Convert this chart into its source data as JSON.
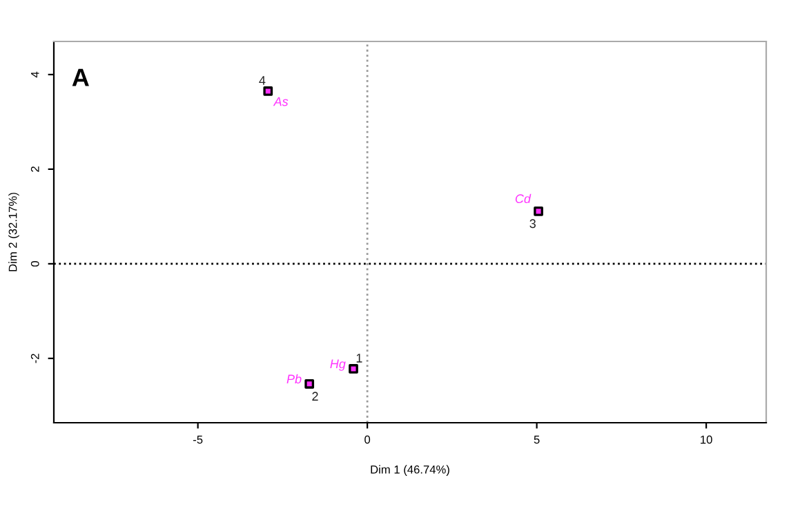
{
  "chart_data": {
    "type": "scatter",
    "xlabel": "Dim 1 (46.74%)",
    "ylabel": "Dim 2 (32.17%)",
    "x": [
      -0.41,
      -1.71,
      5.05,
      -2.93
    ],
    "series": [
      {
        "color": "#ff33ff",
        "values": [
          -2.22,
          -2.54,
          1.11,
          3.65
        ],
        "value_labels": [
          "Hg",
          "Pb",
          "Cd",
          "As"
        ]
      }
    ],
    "marker": "square",
    "xlim": [
      -9.25,
      11.77
    ],
    "ylim": [
      -3.36,
      4.7
    ],
    "xticks": [
      -5,
      0,
      5,
      10
    ],
    "yticks": [
      -2,
      0,
      2,
      4
    ],
    "grid": false,
    "ref_lines": [
      {
        "axis": "x",
        "value": 0,
        "line_style": "dotted",
        "color": "#999999"
      },
      {
        "axis": "y",
        "value": 0,
        "line_style": "dotted",
        "color": "#000000"
      }
    ],
    "annotations": [
      "A",
      {
        "text": "1",
        "x": -0.41,
        "y": -2.22
      },
      {
        "text": "2",
        "x": -1.71,
        "y": -2.54
      },
      {
        "text": "3",
        "x": 5.05,
        "y": 1.11
      },
      {
        "text": "4",
        "x": -2.93,
        "y": 3.65
      }
    ]
  }
}
